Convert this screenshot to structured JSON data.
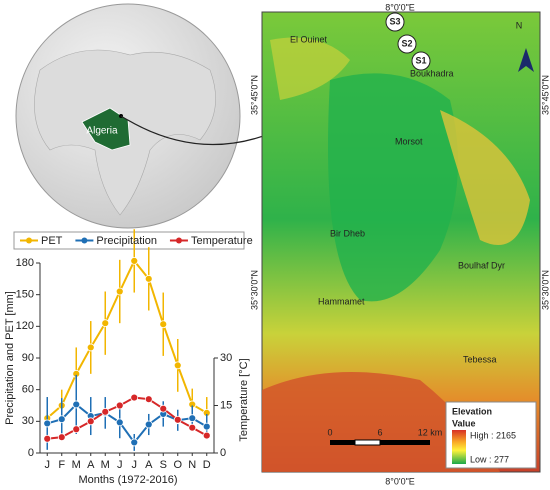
{
  "globe": {
    "label": "Algeria"
  },
  "map": {
    "lon_top": "8°0'0\"E",
    "lon_bottom": "8°0'0\"E",
    "lat_left": [
      "35°45'0\"N",
      "35°30'0\"N"
    ],
    "lat_right": [
      "35°45'0\"N",
      "35°30'0\"N"
    ],
    "places": [
      "El Ouinet",
      "Boukhadra",
      "Morsot",
      "Bir Dheb",
      "Boulhaf Dyr",
      "Hammamet",
      "Tebessa"
    ],
    "stations": [
      "S3",
      "S2",
      "S1"
    ],
    "north": "N",
    "legend": {
      "title": "Elevation",
      "subtitle": "Value",
      "high": "High : 2165",
      "low": "Low : 277"
    },
    "scale": [
      "0",
      "6",
      "12 km"
    ]
  },
  "chart_data": {
    "type": "line",
    "categories": [
      "J",
      "F",
      "M",
      "A",
      "M",
      "J",
      "J",
      "A",
      "S",
      "O",
      "N",
      "D"
    ],
    "series": [
      {
        "name": "PET",
        "color": "#f2b600",
        "values": [
          33,
          45,
          75,
          100,
          123,
          153,
          182,
          165,
          122,
          83,
          46,
          38
        ],
        "errors": [
          20,
          15,
          25,
          25,
          30,
          30,
          30,
          30,
          30,
          25,
          15,
          15
        ]
      },
      {
        "name": "Precipitation",
        "color": "#1f6fb5",
        "values": [
          28,
          32,
          46,
          35,
          38,
          29,
          10,
          27,
          37,
          31,
          33,
          25
        ],
        "errors": [
          25,
          20,
          28,
          18,
          15,
          15,
          8,
          10,
          12,
          10,
          12,
          12
        ]
      },
      {
        "name": "Temperature",
        "color": "#d62728",
        "axis": "y2",
        "values": [
          4.5,
          5,
          7.5,
          10,
          13,
          15,
          17.5,
          17,
          14,
          10.5,
          8,
          5.5
        ]
      }
    ],
    "ylim": [
      0,
      180
    ],
    "yticks": [
      0,
      30,
      60,
      90,
      120,
      150,
      180
    ],
    "y2lim": [
      0,
      60
    ],
    "y2ticks": [
      0,
      15,
      30
    ],
    "ylabel": "Precipitation and PET [mm]",
    "y2label": "Temperature [°C]",
    "xlabel": "Months (1972-2016)",
    "legend": "top"
  }
}
